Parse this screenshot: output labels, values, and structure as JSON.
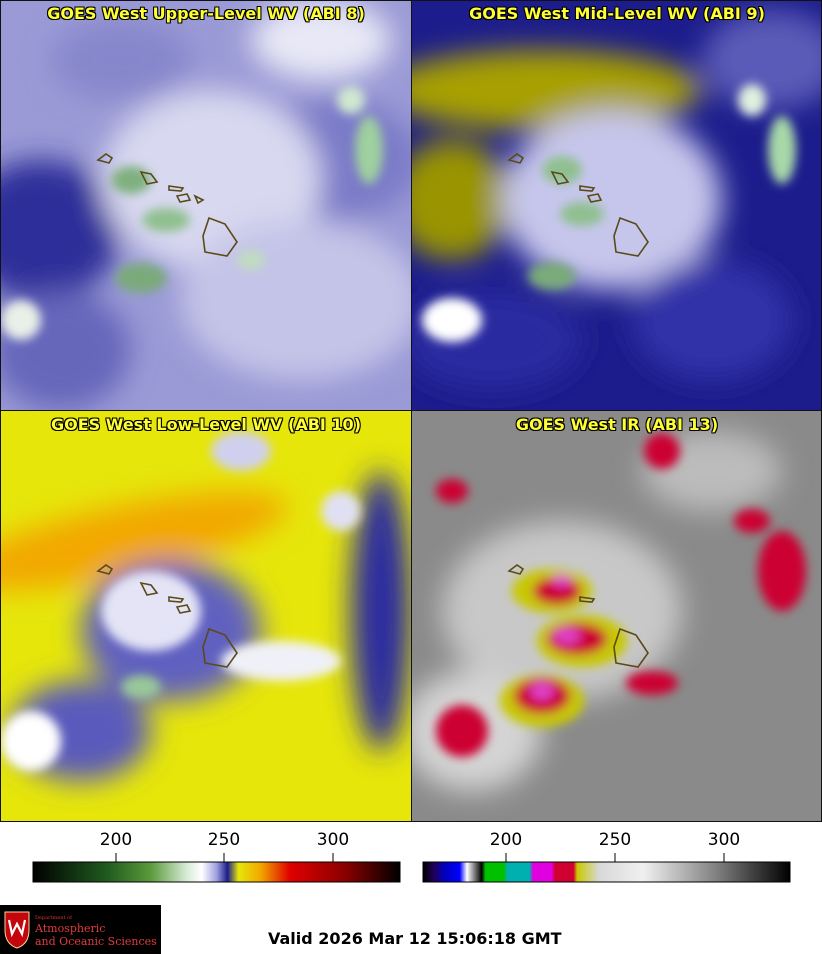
{
  "panels": [
    {
      "title": "GOES West Upper-Level WV (ABI 8)",
      "palette": "wv-upper"
    },
    {
      "title": "GOES West Mid-Level WV (ABI 9)",
      "palette": "wv-mid"
    },
    {
      "title": "GOES West Low-Level WV (ABI 10)",
      "palette": "wv-low"
    },
    {
      "title": "GOES West IR (ABI 13)",
      "palette": "ir"
    }
  ],
  "colorbars": {
    "wv": {
      "ticks": [
        "200",
        "250",
        "300"
      ],
      "range": [
        162,
        332
      ]
    },
    "ir": {
      "ticks": [
        "200",
        "250",
        "300"
      ],
      "range": [
        162,
        332
      ]
    }
  },
  "logo": {
    "line1": "Department of",
    "line2": "Atmospheric",
    "line3": "and Oceanic Sciences"
  },
  "valid_time": "Valid 2026 Mar 12 15:06:18 GMT"
}
